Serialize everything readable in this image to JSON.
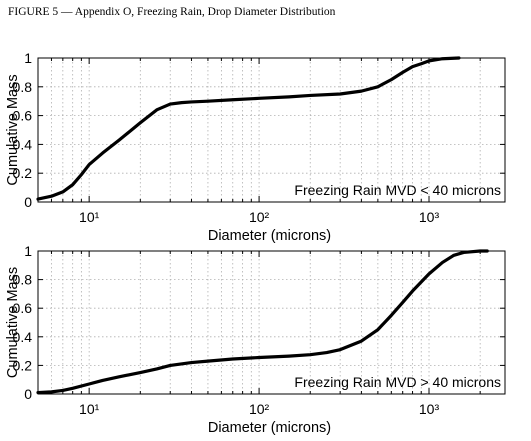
{
  "figure_title": "FIGURE 5 — Appendix O, Freezing Rain, Drop Diameter Distribution",
  "colors": {
    "line": "#000000",
    "grid": "#b0b0b0",
    "axes": "#000000",
    "background": "#ffffff"
  },
  "chart_data": [
    {
      "type": "line",
      "xscale": "log",
      "xlim": [
        5,
        2800
      ],
      "ylim": [
        0,
        1
      ],
      "grid": true,
      "xlabel": "Diameter (microns)",
      "ylabel": "Cumulative Mass",
      "xticks": [
        10,
        100,
        1000
      ],
      "xtick_labels": [
        "10¹",
        "10²",
        "10³"
      ],
      "yticks": [
        0,
        0.2,
        0.4,
        0.6,
        0.8,
        1
      ],
      "ytick_labels": [
        "0",
        "0.2",
        "0.4",
        "0.6",
        "0.8",
        "1"
      ],
      "annotation": "Freezing Rain MVD < 40 microns",
      "series": [
        {
          "x": [
            5,
            6,
            7,
            8,
            9,
            10,
            12,
            15,
            20,
            25,
            30,
            35,
            40,
            50,
            70,
            100,
            150,
            200,
            300,
            400,
            500,
            600,
            700,
            800,
            900,
            1000,
            1200,
            1500
          ],
          "y": [
            0.02,
            0.04,
            0.07,
            0.12,
            0.19,
            0.26,
            0.34,
            0.43,
            0.55,
            0.64,
            0.68,
            0.69,
            0.695,
            0.7,
            0.71,
            0.72,
            0.73,
            0.74,
            0.75,
            0.77,
            0.8,
            0.85,
            0.9,
            0.94,
            0.96,
            0.98,
            0.995,
            1.0
          ]
        }
      ]
    },
    {
      "type": "line",
      "xscale": "log",
      "xlim": [
        5,
        2800
      ],
      "ylim": [
        0,
        1
      ],
      "grid": true,
      "xlabel": "Diameter (microns)",
      "ylabel": "Cumulative Mass",
      "xticks": [
        10,
        100,
        1000
      ],
      "xtick_labels": [
        "10¹",
        "10²",
        "10³"
      ],
      "yticks": [
        0,
        0.2,
        0.4,
        0.6,
        0.8,
        1
      ],
      "ytick_labels": [
        "0",
        "0.2",
        "0.4",
        "0.6",
        "0.8",
        "1"
      ],
      "annotation": "Freezing Rain MVD > 40 microns",
      "series": [
        {
          "x": [
            5,
            6,
            7,
            8,
            10,
            12,
            15,
            20,
            25,
            30,
            40,
            50,
            70,
            100,
            150,
            200,
            250,
            300,
            400,
            500,
            600,
            700,
            800,
            1000,
            1200,
            1400,
            1600,
            2000,
            2200
          ],
          "y": [
            0.01,
            0.015,
            0.025,
            0.04,
            0.07,
            0.095,
            0.12,
            0.15,
            0.175,
            0.2,
            0.22,
            0.23,
            0.245,
            0.255,
            0.265,
            0.275,
            0.29,
            0.31,
            0.37,
            0.45,
            0.55,
            0.64,
            0.72,
            0.84,
            0.92,
            0.97,
            0.99,
            1.0,
            1.0
          ]
        }
      ]
    }
  ]
}
